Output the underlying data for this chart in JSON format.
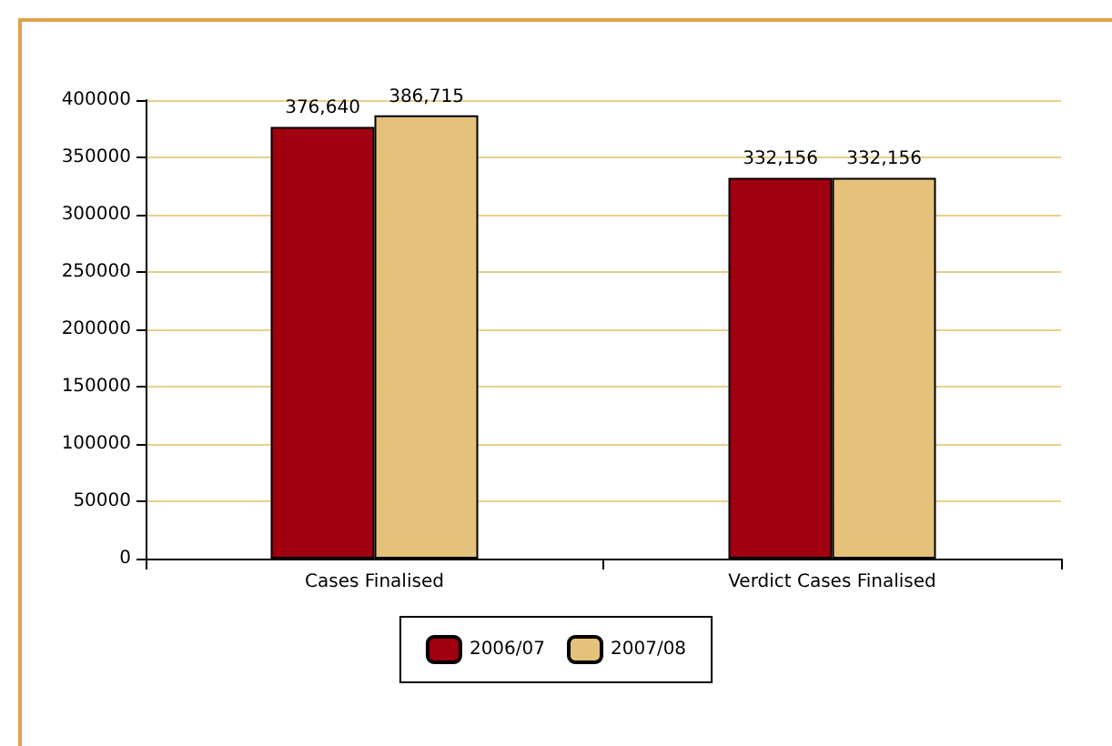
{
  "chart_data": {
    "type": "bar",
    "categories": [
      "Cases Finalised",
      "Verdict Cases Finalised"
    ],
    "series": [
      {
        "name": "2006/07",
        "color": "#a00010",
        "values": [
          376640,
          332156
        ],
        "value_labels": [
          "376,640",
          "332,156"
        ]
      },
      {
        "name": "2007/08",
        "color": "#e6c17a",
        "values": [
          386715,
          332156
        ],
        "value_labels": [
          "386,715",
          "332,156"
        ]
      }
    ],
    "ylim": [
      0,
      400000
    ],
    "yticks": [
      0,
      50000,
      100000,
      150000,
      200000,
      250000,
      300000,
      350000,
      400000
    ],
    "grid": "y",
    "legend": "bottom"
  }
}
